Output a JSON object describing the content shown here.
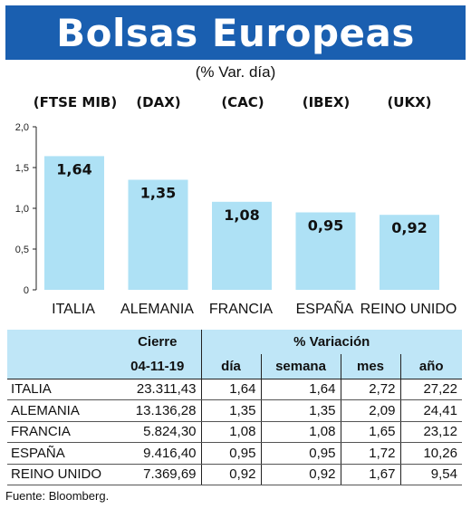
{
  "title": "Bolsas Europeas",
  "subtitle": "(% Var. día)",
  "chart_data": {
    "type": "bar",
    "categories": [
      "ITALIA",
      "ALEMANIA",
      "FRANCIA",
      "ESPAÑA",
      "REINO UNIDO"
    ],
    "index_labels": [
      "(FTSE MIB)",
      "(DAX)",
      "(CAC)",
      "(IBEX)",
      "(UKX)"
    ],
    "values": [
      1.64,
      1.35,
      1.08,
      0.95,
      0.92
    ],
    "value_labels": [
      "1,64",
      "1,35",
      "1,08",
      "0,95",
      "0,92"
    ],
    "y_ticks": [
      "0",
      "0,5",
      "1,0",
      "1,5",
      "2,0"
    ],
    "y_tick_values": [
      0,
      0.5,
      1.0,
      1.5,
      2.0
    ],
    "ylim": [
      0,
      2.0
    ],
    "bar_color": "#aee1f5",
    "grid": false
  },
  "table": {
    "group_headers": {
      "cierre": "Cierre",
      "variacion": "% Variación"
    },
    "sub_headers": {
      "date": "04-11-19",
      "dia": "día",
      "semana": "semana",
      "mes": "mes",
      "ano": "año"
    },
    "rows": [
      {
        "name": "ITALIA",
        "cierre": "23.311,43",
        "dia": "1,64",
        "semana": "1,64",
        "mes": "2,72",
        "ano": "27,22"
      },
      {
        "name": "ALEMANIA",
        "cierre": "13.136,28",
        "dia": "1,35",
        "semana": "1,35",
        "mes": "2,09",
        "ano": "24,41"
      },
      {
        "name": "FRANCIA",
        "cierre": "5.824,30",
        "dia": "1,08",
        "semana": "1,08",
        "mes": "1,65",
        "ano": "23,12"
      },
      {
        "name": "ESPAÑA",
        "cierre": "9.416,40",
        "dia": "0,95",
        "semana": "0,95",
        "mes": "1,72",
        "ano": "10,26"
      },
      {
        "name": "REINO UNIDO",
        "cierre": "7.369,69",
        "dia": "0,92",
        "semana": "0,92",
        "mes": "1,67",
        "ano": "9,54"
      }
    ]
  },
  "source": "Fuente: Bloomberg.",
  "colors": {
    "title_bg": "#1a5fb0",
    "header_bg": "#bfe6f7"
  }
}
